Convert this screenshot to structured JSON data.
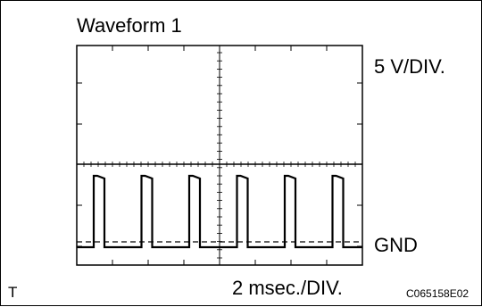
{
  "diagram": {
    "title": "Waveform 1",
    "voltage_scale": "5 V/DIV.",
    "ground_label": "GND",
    "time_scale": "2 msec./DIV.",
    "corner_mark": "T",
    "figure_code": "C065158E02"
  },
  "chart_data": {
    "type": "line",
    "title": "Waveform 1",
    "xlabel": "2 msec./DIV.",
    "ylabel": "5 V/DIV.",
    "grid": "center crosshair with tick marks",
    "x_divisions": 2,
    "y_divisions": 4,
    "series": [
      {
        "name": "",
        "description": "pulse train",
        "pulse_count": 6
      }
    ],
    "reference_line": {
      "label": "GND",
      "style": "dashed"
    }
  },
  "colors": {
    "trace": "#000000",
    "background": "#ffffff"
  }
}
